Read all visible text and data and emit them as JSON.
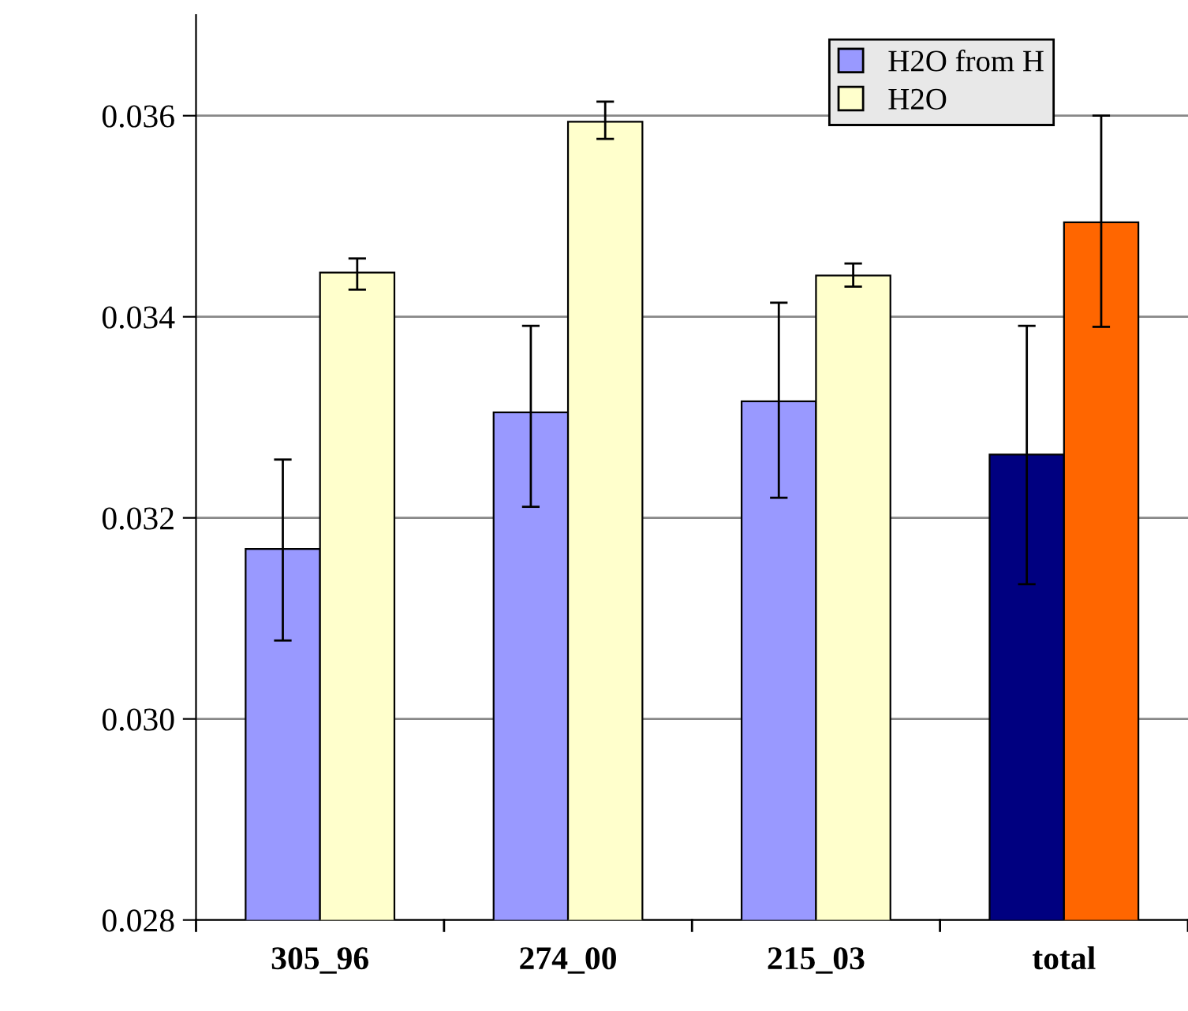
{
  "chart_data": {
    "type": "bar",
    "categories": [
      "305_96",
      "274_00",
      "215_03",
      "total"
    ],
    "series": [
      {
        "name": "H2O from H",
        "color": "#9999ff",
        "colors": [
          "#9999ff",
          "#9999ff",
          "#9999ff",
          "#000080"
        ],
        "values": [
          0.03169,
          0.03305,
          0.03316,
          0.03263
        ],
        "errors": [
          [
            0.03078,
            0.03258
          ],
          [
            0.03211,
            0.03391
          ],
          [
            0.0322,
            0.03414
          ],
          [
            0.03134,
            0.03391
          ]
        ]
      },
      {
        "name": "H2O",
        "color": "#ffffcc",
        "colors": [
          "#ffffcc",
          "#ffffcc",
          "#ffffcc",
          "#ff6600"
        ],
        "values": [
          0.03444,
          0.03594,
          0.03441,
          0.03494
        ],
        "errors": [
          [
            0.03427,
            0.03458
          ],
          [
            0.03577,
            0.03614
          ],
          [
            0.0343,
            0.03453
          ],
          [
            0.0339,
            0.036
          ]
        ]
      }
    ],
    "ylim": [
      0.028,
      0.037
    ],
    "yticks": [
      {
        "value": 0.028,
        "label": "0.028"
      },
      {
        "value": 0.03,
        "label": "0.030"
      },
      {
        "value": 0.032,
        "label": "0.032"
      },
      {
        "value": 0.034,
        "label": "0.034"
      },
      {
        "value": 0.036,
        "label": "0.036"
      }
    ],
    "grid": "y",
    "legend": "top right"
  }
}
